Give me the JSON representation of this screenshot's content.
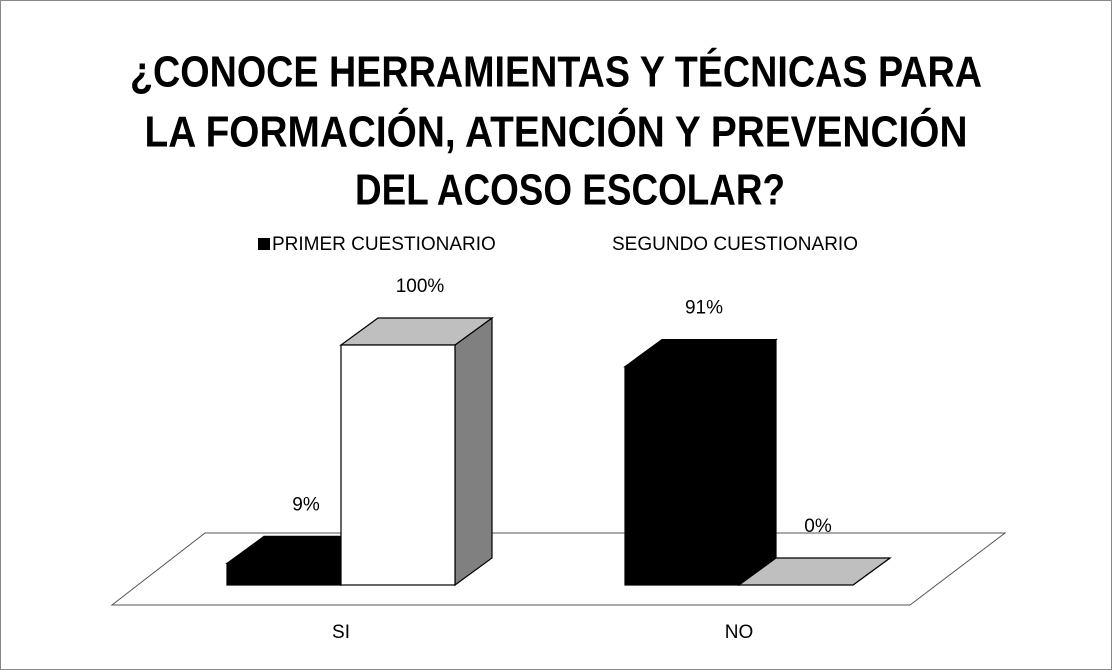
{
  "chart_data": {
    "type": "bar3d",
    "title": [
      "¿CONOCE HERRAMIENTAS Y TÉCNICAS PARA",
      "LA FORMACIÓN, ATENCIÓN Y PREVENCIÓN",
      "DEL ACOSO ESCOLAR?"
    ],
    "categories": [
      "SI",
      "NO"
    ],
    "series": [
      {
        "name": "PRIMER CUESTIONARIO",
        "color": "#000000",
        "values": [
          9,
          91
        ],
        "value_labels": [
          "9%",
          "91%"
        ]
      },
      {
        "name": "SEGUNDO CUESTIONARIO",
        "color": "#ffffff",
        "values": [
          100,
          0
        ],
        "value_labels": [
          "100%",
          "0%"
        ]
      }
    ]
  }
}
